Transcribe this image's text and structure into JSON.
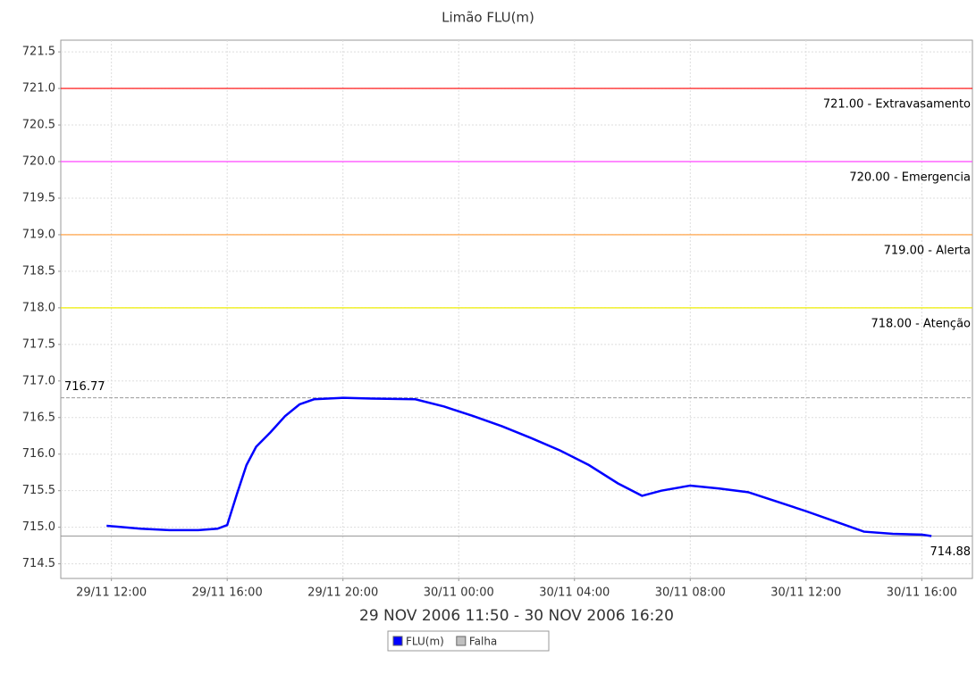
{
  "chart_data": {
    "type": "line",
    "title": "Limão FLU(m)",
    "subtitle": "29 NOV 2006 11:50 - 30 NOV 2006 16:20",
    "x": [
      "29/11 11:50",
      "29/11 13:00",
      "29/11 14:00",
      "29/11 15:00",
      "29/11 15:40",
      "29/11 16:00",
      "29/11 16:20",
      "29/11 16:40",
      "29/11 17:00",
      "29/11 17:30",
      "29/11 18:00",
      "29/11 18:30",
      "29/11 19:00",
      "29/11 20:00",
      "29/11 21:00",
      "29/11 22:30",
      "29/11 23:30",
      "30/11 00:30",
      "30/11 01:30",
      "30/11 02:30",
      "30/11 03:30",
      "30/11 04:30",
      "30/11 05:30",
      "30/11 06:20",
      "30/11 07:00",
      "30/11 08:00",
      "30/11 09:00",
      "30/11 10:00",
      "30/11 11:00",
      "30/11 12:00",
      "30/11 13:00",
      "30/11 14:00",
      "30/11 15:00",
      "30/11 16:00",
      "30/11 16:20"
    ],
    "series": [
      {
        "name": "FLU(m)",
        "color": "#0000ff",
        "values": [
          715.02,
          714.98,
          714.96,
          714.96,
          714.98,
          715.03,
          715.45,
          715.85,
          716.1,
          716.3,
          716.52,
          716.68,
          716.75,
          716.77,
          716.76,
          716.75,
          716.65,
          716.52,
          716.38,
          716.22,
          716.05,
          715.85,
          715.6,
          715.43,
          715.5,
          715.57,
          715.53,
          715.48,
          715.35,
          715.22,
          715.08,
          714.94,
          714.91,
          714.9,
          714.88
        ]
      }
    ],
    "legend_items": [
      {
        "name": "Falha",
        "color": "#c0c0c0"
      }
    ],
    "xlim": [
      "29/11 10:15",
      "30/11 17:45"
    ],
    "xticks": [
      "29/11 12:00",
      "29/11 16:00",
      "29/11 20:00",
      "30/11 00:00",
      "30/11 04:00",
      "30/11 08:00",
      "30/11 12:00",
      "30/11 16:00"
    ],
    "ylim": [
      714.3,
      721.66
    ],
    "yticks": [
      714.5,
      {
        "value": 715,
        "label": "715.0"
      },
      715.5,
      {
        "value": 716,
        "label": "716.0"
      },
      716.5,
      {
        "value": 717,
        "label": "717.0"
      },
      717.5,
      {
        "value": 718,
        "label": "718.0"
      },
      718.5,
      {
        "value": 719,
        "label": "719.0"
      },
      719.5,
      {
        "value": 720,
        "label": "720.0"
      },
      720.5,
      {
        "value": 721,
        "label": "721.0"
      },
      721.5
    ],
    "grid": true,
    "threshold_lines": [
      {
        "value": 721,
        "label": "721.00 - Extravasamento",
        "color": "#ff0000"
      },
      {
        "value": 720,
        "label": "720.00 - Emergencia",
        "color": "#ff44ff"
      },
      {
        "value": 719,
        "label": "719.00 - Alerta",
        "color": "#ff9933"
      },
      {
        "value": 718,
        "label": "718.00 - Atenção",
        "color": "#eeee00"
      }
    ],
    "max_line": {
      "value": 716.77,
      "color": "#999999"
    },
    "min_line": {
      "value": 714.88,
      "color": "#999999"
    }
  }
}
